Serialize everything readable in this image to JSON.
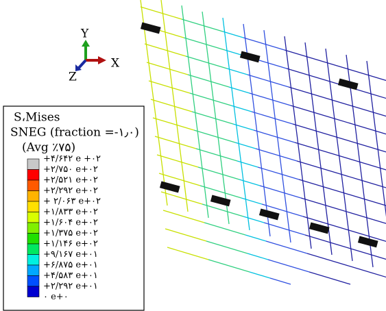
{
  "legend": {
    "title_lines": [
      "S،Mises",
      "SNEG (fraction =-۱٫۰)",
      "(Avg ٪۷۵)"
    ],
    "labels": [
      "+۴/۶۴۲ e +۰۲",
      "+۲/۷۵۰ e+۰۲",
      "+۲/۵۲۱ e+۰۲",
      "+۲/۲۹۲ e+۰۲",
      "+ ۲/۰۶۳ e+۰۲",
      "+۱/۸۳۳ e+۰۲",
      "+۱/۶۰۴ e+۰۲",
      "+۱/۳۷۵ e+۰۲",
      "+۱/۱۴۶ e+۰۲",
      "+۹/۱۶۷ e+۰۱",
      "+۶/۸۷۵ e+۰۱",
      "+۴/۵۸۳ e+۰۱",
      "+۲/۲۹۲ e+۰۱",
      "۰ e+۰"
    ],
    "colors": [
      "#c8c8c8",
      "#ff0000",
      "#ff5a00",
      "#ffb400",
      "#ffe000",
      "#d8ff00",
      "#80f000",
      "#20e000",
      "#00e860",
      "#00f0e0",
      "#00a8ff",
      "#0050ff",
      "#0000d0"
    ]
  },
  "triad": {
    "y": "Y",
    "x": "X",
    "z": "Z"
  }
}
